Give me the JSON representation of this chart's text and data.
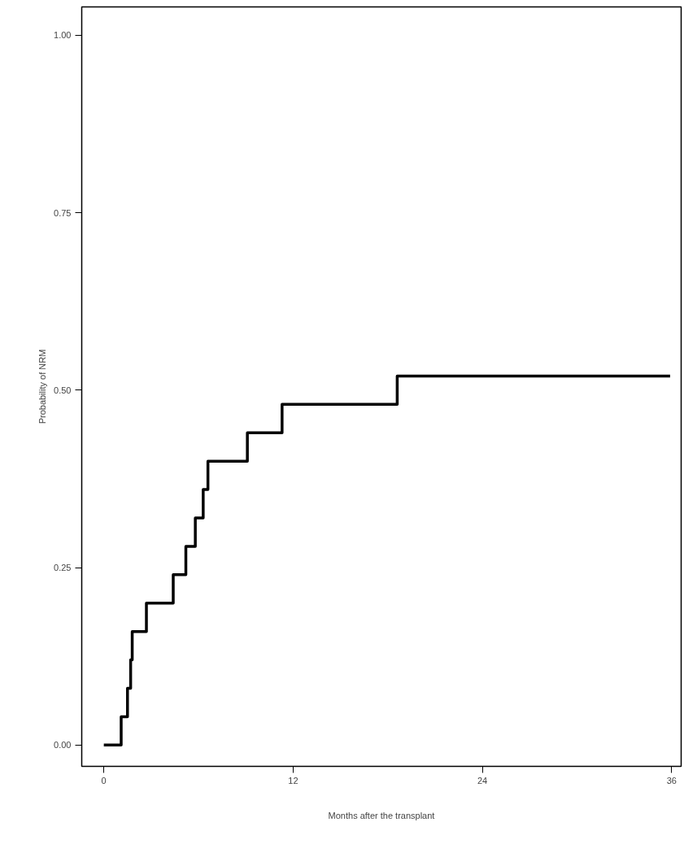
{
  "chart_data": {
    "type": "step",
    "xlabel": "Months after the transplant",
    "ylabel": "Probability of NRM",
    "x": [
      0,
      1.1,
      1.5,
      1.7,
      1.8,
      2.7,
      4.4,
      5.2,
      5.8,
      6.3,
      6.6,
      9.1,
      11.3,
      18.6,
      35.9
    ],
    "series": [
      {
        "color": "#000000",
        "values": [
          0,
          0.04,
          0.08,
          0.12,
          0.16,
          0.2,
          0.24,
          0.28,
          0.32,
          0.36,
          0.4,
          0.44,
          0.48,
          0.52,
          0.52
        ]
      }
    ],
    "xlim": [
      -1.4,
      36.6
    ],
    "ylim": [
      -0.03,
      1.04
    ],
    "xticks": [
      0,
      12,
      24,
      36
    ],
    "yticks": [
      {
        "value": 0,
        "label": "0.00"
      },
      {
        "value": 0.25,
        "label": "0.25"
      },
      {
        "value": 0.5,
        "label": "0.50"
      },
      {
        "value": 0.75,
        "label": "0.75"
      },
      {
        "value": 1,
        "label": "1.00"
      }
    ],
    "grid": false,
    "marker": "none",
    "line_style": "solid"
  }
}
